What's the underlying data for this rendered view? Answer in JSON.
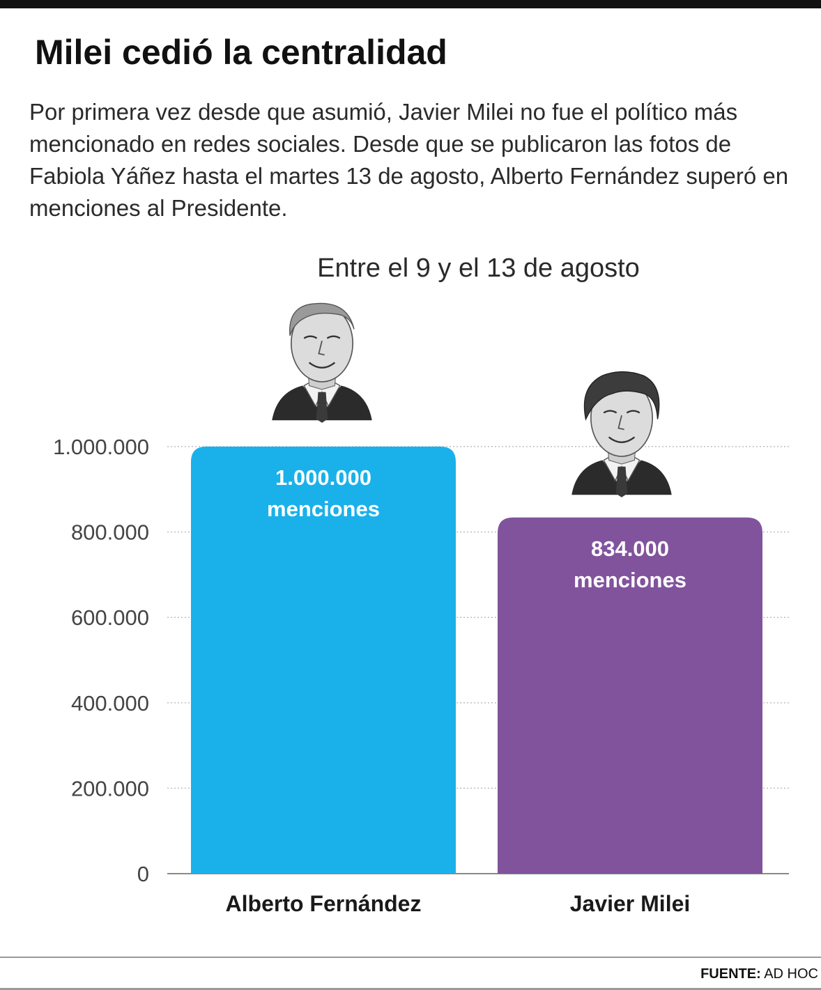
{
  "header": {
    "title": "Milei cedió la centralidad",
    "description": "Por primera vez desde que asumió, Javier Milei no fue el político más mencionado en redes sociales. Desde que se publicaron las fotos de Fabiola Yáñez hasta el martes 13 de agosto, Alberto Fernández superó en menciones al Presidente."
  },
  "chart_data": {
    "type": "bar",
    "subtitle": "Entre el 9 y el 13 de agosto",
    "categories": [
      "Alberto Fernández",
      "Javier Milei"
    ],
    "values": [
      1000000,
      834000
    ],
    "value_labels": [
      {
        "value": "1.000.000",
        "unit": "menciones"
      },
      {
        "value": "834.000",
        "unit": "menciones"
      }
    ],
    "colors": [
      "#1ab1ea",
      "#81539c"
    ],
    "portraits": [
      "alberto-fernandez-portrait",
      "javier-milei-portrait"
    ],
    "ylim": [
      0,
      1000000
    ],
    "yticks": [
      0,
      200000,
      400000,
      600000,
      800000,
      1000000
    ],
    "ytick_labels": [
      "0",
      "200.000",
      "400.000",
      "600.000",
      "800.000",
      "1.000.000"
    ],
    "xlabel": "",
    "ylabel": "",
    "grid": true,
    "legend": "none"
  },
  "footer": {
    "source_label": "FUENTE:",
    "source_value": "AD HOC"
  }
}
